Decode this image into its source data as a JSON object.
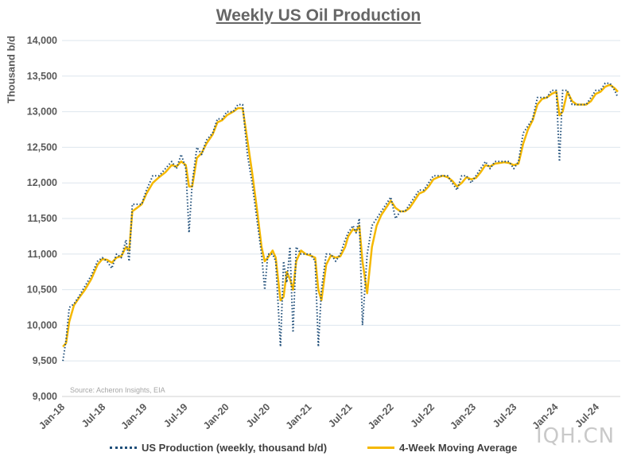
{
  "chart_data": {
    "type": "line",
    "title": "Weekly US Oil Production",
    "ylabel": "Thousand b/d",
    "xlabel": "",
    "source": "Source: Acheron Insights, EIA",
    "ylim": [
      9000,
      14000
    ],
    "yticks": [
      9000,
      9500,
      10000,
      10500,
      11000,
      11500,
      12000,
      12500,
      13000,
      13500,
      14000
    ],
    "ytick_labels": [
      "9,000",
      "9,500",
      "10,000",
      "10,500",
      "11,000",
      "11,500",
      "12,000",
      "12,500",
      "13,000",
      "13,500",
      "14,000"
    ],
    "xlim": [
      "2018-01-01",
      "2024-10-15"
    ],
    "xticks": [
      "2018-01-01",
      "2018-07-01",
      "2019-01-01",
      "2019-07-01",
      "2020-01-01",
      "2020-07-01",
      "2021-01-01",
      "2021-07-01",
      "2022-01-01",
      "2022-07-01",
      "2023-01-01",
      "2023-07-01",
      "2024-01-01",
      "2024-07-01"
    ],
    "xtick_labels": [
      "Jan-18",
      "Jul-18",
      "Jan-19",
      "Jul-19",
      "Jan-20",
      "Jul-20",
      "Jan-21",
      "Jul-21",
      "Jan-22",
      "Jul-22",
      "Jan-23",
      "Jul-23",
      "Jan-24",
      "Jul-24"
    ],
    "grid": true,
    "legend_placement": "bottom",
    "series": [
      {
        "name": "US Production (weekly, thousand b/d)",
        "color": "#1f4e79",
        "style": "dotted",
        "points": [
          [
            "2018-01-05",
            9500
          ],
          [
            "2018-01-19",
            9800
          ],
          [
            "2018-02-02",
            10250
          ],
          [
            "2018-02-23",
            10300
          ],
          [
            "2018-03-16",
            10400
          ],
          [
            "2018-04-13",
            10550
          ],
          [
            "2018-05-11",
            10700
          ],
          [
            "2018-06-08",
            10900
          ],
          [
            "2018-06-29",
            10950
          ],
          [
            "2018-07-20",
            10900
          ],
          [
            "2018-08-10",
            10800
          ],
          [
            "2018-08-31",
            11000
          ],
          [
            "2018-09-21",
            10950
          ],
          [
            "2018-10-12",
            11200
          ],
          [
            "2018-10-26",
            10900
          ],
          [
            "2018-11-09",
            11700
          ],
          [
            "2018-11-30",
            11700
          ],
          [
            "2018-12-21",
            11700
          ],
          [
            "2019-01-11",
            11900
          ],
          [
            "2019-02-08",
            12100
          ],
          [
            "2019-03-08",
            12100
          ],
          [
            "2019-04-05",
            12200
          ],
          [
            "2019-05-03",
            12300
          ],
          [
            "2019-05-24",
            12200
          ],
          [
            "2019-06-14",
            12400
          ],
          [
            "2019-07-05",
            12200
          ],
          [
            "2019-07-19",
            11300
          ],
          [
            "2019-08-02",
            12000
          ],
          [
            "2019-08-23",
            12500
          ],
          [
            "2019-09-13",
            12400
          ],
          [
            "2019-10-04",
            12600
          ],
          [
            "2019-11-01",
            12700
          ],
          [
            "2019-11-22",
            12900
          ],
          [
            "2019-12-13",
            12900
          ],
          [
            "2020-01-03",
            13000
          ],
          [
            "2020-01-31",
            13000
          ],
          [
            "2020-02-21",
            13100
          ],
          [
            "2020-03-13",
            13100
          ],
          [
            "2020-04-03",
            12400
          ],
          [
            "2020-04-24",
            12000
          ],
          [
            "2020-05-15",
            11500
          ],
          [
            "2020-06-05",
            11000
          ],
          [
            "2020-06-19",
            10500
          ],
          [
            "2020-07-03",
            11000
          ],
          [
            "2020-07-24",
            11000
          ],
          [
            "2020-08-07",
            10900
          ],
          [
            "2020-08-28",
            9700
          ],
          [
            "2020-09-11",
            10900
          ],
          [
            "2020-09-25",
            10600
          ],
          [
            "2020-10-09",
            11100
          ],
          [
            "2020-10-23",
            9900
          ],
          [
            "2020-11-06",
            11100
          ],
          [
            "2020-11-27",
            11000
          ],
          [
            "2020-12-18",
            11000
          ],
          [
            "2021-01-08",
            11000
          ],
          [
            "2021-01-29",
            10900
          ],
          [
            "2021-02-12",
            9700
          ],
          [
            "2021-02-26",
            10500
          ],
          [
            "2021-03-19",
            11000
          ],
          [
            "2021-04-09",
            11000
          ],
          [
            "2021-04-30",
            10900
          ],
          [
            "2021-05-21",
            11000
          ],
          [
            "2021-06-11",
            11200
          ],
          [
            "2021-06-25",
            11300
          ],
          [
            "2021-07-16",
            11400
          ],
          [
            "2021-07-30",
            11300
          ],
          [
            "2021-08-13",
            11500
          ],
          [
            "2021-08-27",
            10000
          ],
          [
            "2021-09-17",
            11000
          ],
          [
            "2021-10-08",
            11400
          ],
          [
            "2021-10-29",
            11500
          ],
          [
            "2021-11-19",
            11600
          ],
          [
            "2021-12-10",
            11700
          ],
          [
            "2021-12-31",
            11800
          ],
          [
            "2022-01-21",
            11500
          ],
          [
            "2022-02-11",
            11600
          ],
          [
            "2022-03-04",
            11600
          ],
          [
            "2022-03-25",
            11700
          ],
          [
            "2022-04-15",
            11800
          ],
          [
            "2022-05-06",
            11900
          ],
          [
            "2022-05-27",
            11900
          ],
          [
            "2022-06-17",
            12000
          ],
          [
            "2022-07-08",
            12100
          ],
          [
            "2022-07-29",
            12100
          ],
          [
            "2022-08-19",
            12100
          ],
          [
            "2022-09-09",
            12100
          ],
          [
            "2022-09-30",
            12000
          ],
          [
            "2022-10-21",
            11900
          ],
          [
            "2022-11-11",
            12100
          ],
          [
            "2022-12-02",
            12100
          ],
          [
            "2022-12-23",
            12000
          ],
          [
            "2023-01-13",
            12100
          ],
          [
            "2023-02-03",
            12200
          ],
          [
            "2023-02-24",
            12300
          ],
          [
            "2023-03-17",
            12200
          ],
          [
            "2023-04-07",
            12300
          ],
          [
            "2023-04-28",
            12300
          ],
          [
            "2023-05-19",
            12300
          ],
          [
            "2023-06-09",
            12300
          ],
          [
            "2023-06-30",
            12200
          ],
          [
            "2023-07-21",
            12300
          ],
          [
            "2023-08-11",
            12700
          ],
          [
            "2023-09-01",
            12800
          ],
          [
            "2023-09-22",
            12900
          ],
          [
            "2023-10-13",
            13200
          ],
          [
            "2023-11-03",
            13200
          ],
          [
            "2023-11-24",
            13200
          ],
          [
            "2023-12-15",
            13300
          ],
          [
            "2024-01-05",
            13300
          ],
          [
            "2024-01-19",
            12300
          ],
          [
            "2024-02-02",
            13300
          ],
          [
            "2024-02-23",
            13300
          ],
          [
            "2024-03-15",
            13100
          ],
          [
            "2024-04-05",
            13100
          ],
          [
            "2024-04-26",
            13100
          ],
          [
            "2024-05-17",
            13100
          ],
          [
            "2024-06-07",
            13200
          ],
          [
            "2024-06-28",
            13300
          ],
          [
            "2024-07-19",
            13300
          ],
          [
            "2024-08-09",
            13400
          ],
          [
            "2024-08-30",
            13400
          ],
          [
            "2024-09-20",
            13300
          ],
          [
            "2024-10-04",
            13200
          ]
        ]
      },
      {
        "name": "4-Week Moving Average",
        "color": "#f5b800",
        "style": "solid",
        "points": [
          [
            "2018-01-05",
            9700
          ],
          [
            "2018-01-19",
            9750
          ],
          [
            "2018-02-02",
            10050
          ],
          [
            "2018-02-23",
            10280
          ],
          [
            "2018-03-16",
            10380
          ],
          [
            "2018-04-13",
            10500
          ],
          [
            "2018-05-11",
            10650
          ],
          [
            "2018-06-08",
            10850
          ],
          [
            "2018-06-29",
            10930
          ],
          [
            "2018-07-20",
            10920
          ],
          [
            "2018-08-10",
            10880
          ],
          [
            "2018-08-31",
            10950
          ],
          [
            "2018-09-21",
            10970
          ],
          [
            "2018-10-12",
            11100
          ],
          [
            "2018-10-26",
            11050
          ],
          [
            "2018-11-09",
            11600
          ],
          [
            "2018-11-30",
            11650
          ],
          [
            "2018-12-21",
            11700
          ],
          [
            "2019-01-11",
            11850
          ],
          [
            "2019-02-08",
            12000
          ],
          [
            "2019-03-08",
            12080
          ],
          [
            "2019-04-05",
            12150
          ],
          [
            "2019-05-03",
            12250
          ],
          [
            "2019-05-24",
            12230
          ],
          [
            "2019-06-14",
            12300
          ],
          [
            "2019-07-05",
            12250
          ],
          [
            "2019-07-19",
            11950
          ],
          [
            "2019-08-02",
            11950
          ],
          [
            "2019-08-23",
            12350
          ],
          [
            "2019-09-13",
            12420
          ],
          [
            "2019-10-04",
            12550
          ],
          [
            "2019-11-01",
            12680
          ],
          [
            "2019-11-22",
            12850
          ],
          [
            "2019-12-13",
            12880
          ],
          [
            "2020-01-03",
            12950
          ],
          [
            "2020-01-31",
            13000
          ],
          [
            "2020-02-21",
            13050
          ],
          [
            "2020-03-13",
            13050
          ],
          [
            "2020-04-03",
            12600
          ],
          [
            "2020-04-24",
            12150
          ],
          [
            "2020-05-15",
            11650
          ],
          [
            "2020-06-05",
            11100
          ],
          [
            "2020-06-19",
            10900
          ],
          [
            "2020-07-03",
            10950
          ],
          [
            "2020-07-24",
            11050
          ],
          [
            "2020-08-07",
            10950
          ],
          [
            "2020-08-28",
            10350
          ],
          [
            "2020-09-11",
            10400
          ],
          [
            "2020-09-25",
            10750
          ],
          [
            "2020-10-09",
            10650
          ],
          [
            "2020-10-23",
            10500
          ],
          [
            "2020-11-06",
            10900
          ],
          [
            "2020-11-27",
            11050
          ],
          [
            "2020-12-18",
            11000
          ],
          [
            "2021-01-08",
            10980
          ],
          [
            "2021-01-29",
            10950
          ],
          [
            "2021-02-12",
            10500
          ],
          [
            "2021-02-26",
            10350
          ],
          [
            "2021-03-19",
            10850
          ],
          [
            "2021-04-09",
            10980
          ],
          [
            "2021-04-30",
            10950
          ],
          [
            "2021-05-21",
            10970
          ],
          [
            "2021-06-11",
            11100
          ],
          [
            "2021-06-25",
            11250
          ],
          [
            "2021-07-16",
            11350
          ],
          [
            "2021-07-30",
            11320
          ],
          [
            "2021-08-13",
            11400
          ],
          [
            "2021-08-27",
            10900
          ],
          [
            "2021-09-17",
            10450
          ],
          [
            "2021-10-08",
            11100
          ],
          [
            "2021-10-29",
            11400
          ],
          [
            "2021-11-19",
            11550
          ],
          [
            "2021-12-10",
            11650
          ],
          [
            "2021-12-31",
            11750
          ],
          [
            "2022-01-21",
            11650
          ],
          [
            "2022-02-11",
            11600
          ],
          [
            "2022-03-04",
            11600
          ],
          [
            "2022-03-25",
            11650
          ],
          [
            "2022-04-15",
            11750
          ],
          [
            "2022-05-06",
            11850
          ],
          [
            "2022-05-27",
            11880
          ],
          [
            "2022-06-17",
            11950
          ],
          [
            "2022-07-08",
            12050
          ],
          [
            "2022-07-29",
            12080
          ],
          [
            "2022-08-19",
            12100
          ],
          [
            "2022-09-09",
            12080
          ],
          [
            "2022-09-30",
            12030
          ],
          [
            "2022-10-21",
            11950
          ],
          [
            "2022-11-11",
            12000
          ],
          [
            "2022-12-02",
            12080
          ],
          [
            "2022-12-23",
            12050
          ],
          [
            "2023-01-13",
            12070
          ],
          [
            "2023-02-03",
            12150
          ],
          [
            "2023-02-24",
            12250
          ],
          [
            "2023-03-17",
            12230
          ],
          [
            "2023-04-07",
            12270
          ],
          [
            "2023-04-28",
            12280
          ],
          [
            "2023-05-19",
            12290
          ],
          [
            "2023-06-09",
            12280
          ],
          [
            "2023-06-30",
            12250
          ],
          [
            "2023-07-21",
            12270
          ],
          [
            "2023-08-11",
            12550
          ],
          [
            "2023-09-01",
            12750
          ],
          [
            "2023-09-22",
            12880
          ],
          [
            "2023-10-13",
            13100
          ],
          [
            "2023-11-03",
            13180
          ],
          [
            "2023-11-24",
            13200
          ],
          [
            "2023-12-15",
            13250
          ],
          [
            "2024-01-05",
            13280
          ],
          [
            "2024-01-19",
            12950
          ],
          [
            "2024-02-02",
            13000
          ],
          [
            "2024-02-23",
            13280
          ],
          [
            "2024-03-15",
            13150
          ],
          [
            "2024-04-05",
            13100
          ],
          [
            "2024-04-26",
            13100
          ],
          [
            "2024-05-17",
            13100
          ],
          [
            "2024-06-07",
            13150
          ],
          [
            "2024-06-28",
            13250
          ],
          [
            "2024-07-19",
            13280
          ],
          [
            "2024-08-09",
            13350
          ],
          [
            "2024-08-30",
            13380
          ],
          [
            "2024-09-20",
            13330
          ],
          [
            "2024-10-04",
            13280
          ]
        ]
      }
    ]
  },
  "watermark": "IQH.CN"
}
